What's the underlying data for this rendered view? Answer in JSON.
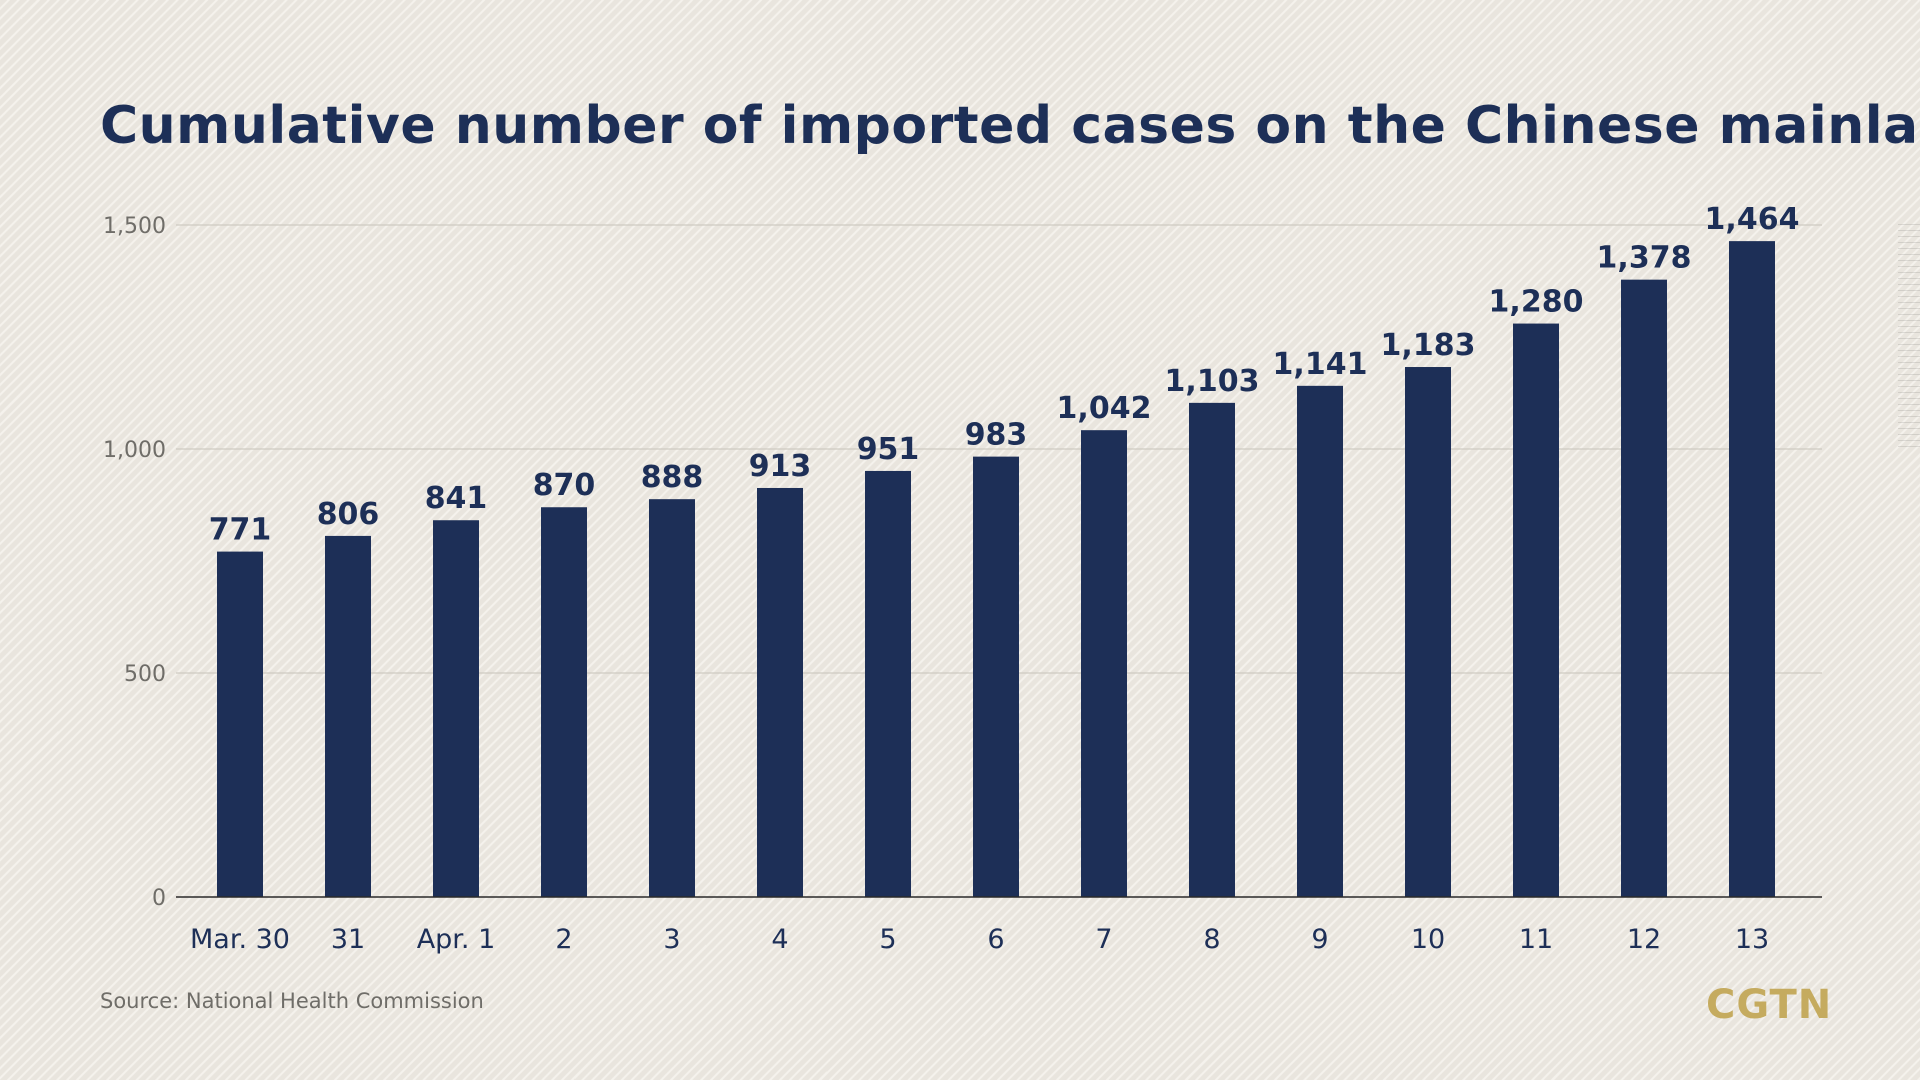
{
  "header": {
    "title": "Cumulative number of imported cases on the Chinese mainland"
  },
  "footer": {
    "source": "Source: National Health Commission",
    "brand": "CGTN"
  },
  "colors": {
    "bar": "#1d2f57",
    "title": "#1d2f57",
    "brand": "#c5ab5f",
    "gridline": "#cfcbc2",
    "axis_text": "#6f6d68"
  },
  "chart_data": {
    "type": "bar",
    "title": "Cumulative number of imported cases on the Chinese mainland",
    "xlabel": "",
    "ylabel": "",
    "categories": [
      "Mar. 30",
      "31",
      "Apr. 1",
      "2",
      "3",
      "4",
      "5",
      "6",
      "7",
      "8",
      "9",
      "10",
      "11",
      "12",
      "13"
    ],
    "values": [
      771,
      806,
      841,
      870,
      888,
      913,
      951,
      983,
      1042,
      1103,
      1141,
      1183,
      1280,
      1378,
      1464
    ],
    "value_labels": [
      "771",
      "806",
      "841",
      "870",
      "888",
      "913",
      "951",
      "983",
      "1,042",
      "1,103",
      "1,141",
      "1,183",
      "1,280",
      "1,378",
      "1,464"
    ],
    "ylim": [
      0,
      1500
    ],
    "yticks": [
      0,
      500,
      1000,
      1500
    ],
    "ytick_labels": [
      "0",
      "500",
      "1,000",
      "1,500"
    ],
    "grid": true,
    "legend": "none"
  }
}
